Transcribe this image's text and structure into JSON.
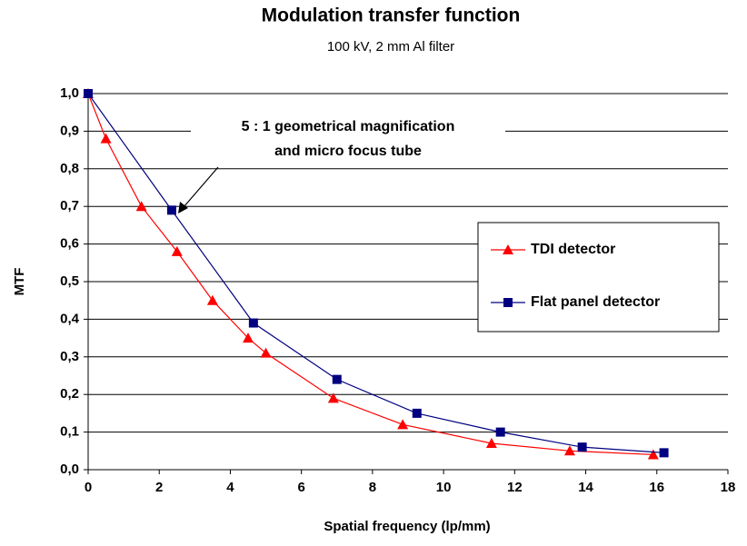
{
  "chart_data": {
    "type": "line",
    "title": "Modulation transfer function",
    "subtitle": "100 kV, 2 mm Al filter",
    "xlabel": "Spatial frequency (lp/mm)",
    "ylabel": "MTF",
    "annotation": [
      "5 : 1 geometrical magnification",
      "and micro focus tube"
    ],
    "xlim": [
      0,
      18
    ],
    "xticks": [
      0,
      2,
      4,
      6,
      8,
      10,
      12,
      14,
      16,
      18
    ],
    "ylim": [
      0,
      1
    ],
    "yticks": [
      {
        "value": 0,
        "label": "0,0"
      },
      {
        "value": 0.1,
        "label": "0,1"
      },
      {
        "value": 0.2,
        "label": "0,2"
      },
      {
        "value": 0.3,
        "label": "0,3"
      },
      {
        "value": 0.4,
        "label": "0,4"
      },
      {
        "value": 0.5,
        "label": "0,5"
      },
      {
        "value": 0.6,
        "label": "0,6"
      },
      {
        "value": 0.7,
        "label": "0,7"
      },
      {
        "value": 0.8,
        "label": "0,8"
      },
      {
        "value": 0.9,
        "label": "0,9"
      },
      {
        "value": 1,
        "label": "1,0"
      }
    ],
    "grid": true,
    "series": [
      {
        "name": "TDI detector",
        "color": "#ff0000",
        "marker": "triangle",
        "x": [
          0,
          0.5,
          1.5,
          2.5,
          3.5,
          4.5,
          5.0,
          6.9,
          8.85,
          11.35,
          13.55,
          15.9
        ],
        "values": [
          1.0,
          0.88,
          0.7,
          0.58,
          0.45,
          0.35,
          0.31,
          0.19,
          0.12,
          0.07,
          0.05,
          0.04
        ]
      },
      {
        "name": "Flat panel detector",
        "color": "#000080",
        "marker": "square",
        "x": [
          0,
          2.35,
          4.65,
          7.0,
          9.25,
          11.6,
          13.9,
          16.2
        ],
        "values": [
          1.0,
          0.69,
          0.39,
          0.24,
          0.15,
          0.1,
          0.06,
          0.045
        ]
      }
    ]
  }
}
